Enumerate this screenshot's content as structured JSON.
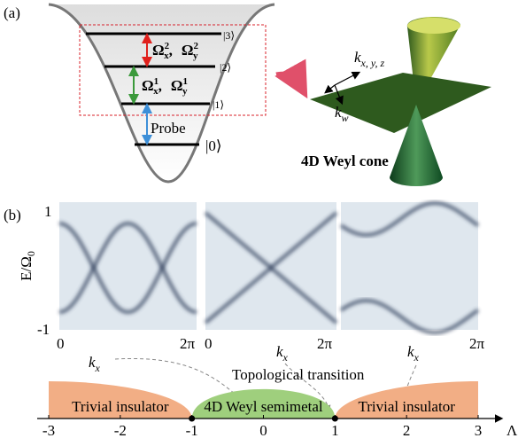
{
  "panel_a": {
    "label": "(a)",
    "states": [
      "|3⟩",
      "|2⟩",
      "|1⟩",
      "|0⟩"
    ],
    "couplings": [
      {
        "base": "Ω",
        "sup": "2",
        "subs": [
          "x",
          "y"
        ],
        "separator": ","
      },
      {
        "base": "Ω",
        "sup": "1",
        "subs": [
          "x",
          "y"
        ],
        "separator": ","
      }
    ],
    "probe": "Probe",
    "k_xyz": {
      "base": "k",
      "sub": "x, y, z"
    },
    "k_w": {
      "base": "k",
      "sub": "w"
    },
    "cone_title": "4D Weyl cone"
  },
  "panel_b": {
    "label": "(b)",
    "y_axis": {
      "label": {
        "base": "E/Ω",
        "sub": "0"
      },
      "top": 1,
      "bottom": -1
    },
    "plots": [
      {
        "x_start": 0,
        "x_end": "2π",
        "x_label": {
          "base": "k",
          "sub": "x"
        }
      },
      {
        "x_start": 0,
        "x_end": "2π",
        "x_label": {
          "base": "k",
          "sub": "x"
        }
      },
      {
        "x_end": "2π",
        "x_label": {
          "base": "k",
          "sub": "x"
        }
      }
    ],
    "annotation": "Topological transition",
    "phases": [
      {
        "label": "Trivial insulator",
        "from": -3,
        "to": -1
      },
      {
        "label": "4D Weyl semimetal",
        "from": -1,
        "to": 1
      },
      {
        "label": "Trivial insulator",
        "from": 1,
        "to": 3
      }
    ],
    "axis": {
      "label": "Λ",
      "ticks": [
        -3,
        -2,
        -1,
        0,
        1,
        2,
        3
      ]
    }
  }
}
